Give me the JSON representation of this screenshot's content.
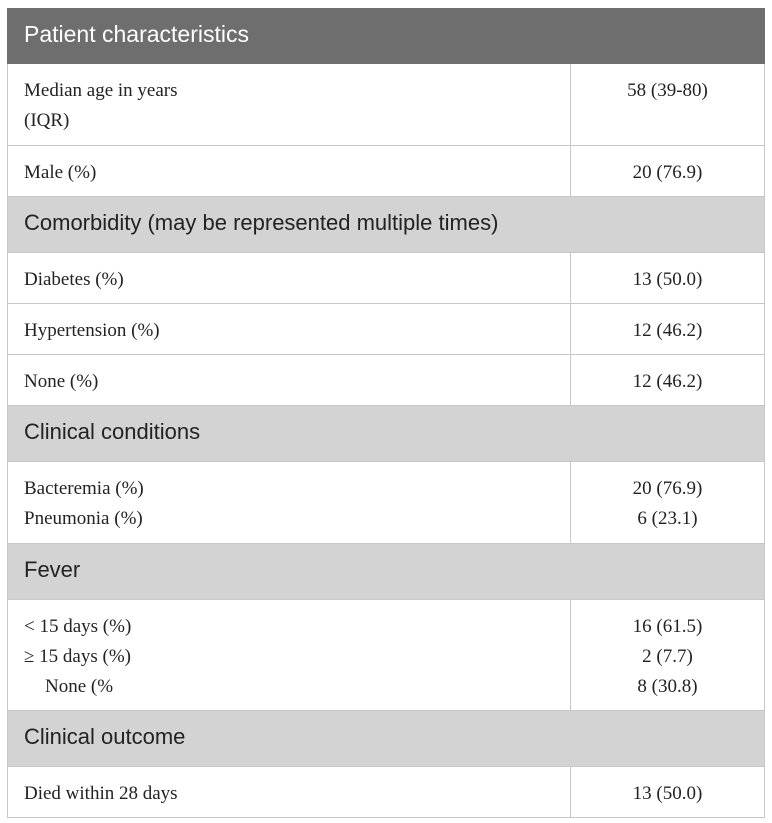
{
  "table": {
    "title": "Patient characteristics",
    "rows": [
      {
        "label_lines": [
          "Median age in years",
          "(IQR)"
        ],
        "value_lines": [
          "58 (39-80)"
        ]
      },
      {
        "label_lines": [
          "Male (%)"
        ],
        "value_lines": [
          "20 (76.9)"
        ]
      },
      {
        "section": "Comorbidity (may be represented multiple times)"
      },
      {
        "label_lines": [
          "Diabetes (%)"
        ],
        "value_lines": [
          "13 (50.0)"
        ]
      },
      {
        "label_lines": [
          "Hypertension (%)"
        ],
        "value_lines": [
          "12 (46.2)"
        ]
      },
      {
        "label_lines": [
          "None (%)"
        ],
        "value_lines": [
          "12 (46.2)"
        ]
      },
      {
        "section": "Clinical conditions"
      },
      {
        "label_lines": [
          "Bacteremia (%)",
          "Pneumonia (%)"
        ],
        "value_lines": [
          "20 (76.9)",
          "6 (23.1)"
        ]
      },
      {
        "section": "Fever"
      },
      {
        "label_lines": [
          "< 15 days (%)",
          "≥ 15 days (%)",
          "None (%"
        ],
        "value_lines": [
          "16 (61.5)",
          "2 (7.7)",
          "8 (30.8)"
        ]
      },
      {
        "section": "Clinical outcome"
      },
      {
        "label_lines": [
          "Died within 28 days"
        ],
        "value_lines": [
          "13 (50.0)"
        ]
      }
    ]
  }
}
